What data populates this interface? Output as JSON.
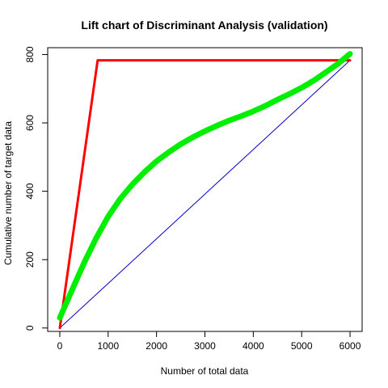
{
  "chart_data": {
    "type": "line",
    "title": "Lift chart of Discriminant Analysis (validation)",
    "xlabel": "Number of total data",
    "ylabel": "Cumulative number of target data",
    "xlim": [
      -250,
      6250
    ],
    "ylim": [
      -10,
      820
    ],
    "xticks": [
      0,
      1000,
      2000,
      3000,
      4000,
      5000,
      6000
    ],
    "yticks": [
      0,
      200,
      400,
      600,
      800
    ],
    "grid": false,
    "legend": "none",
    "series": [
      {
        "color": "#0000cc",
        "width": 1,
        "x": [
          0,
          6000
        ],
        "y": [
          0,
          783
        ]
      },
      {
        "color": "#ff0000",
        "width": 3,
        "x": [
          0,
          783,
          6000
        ],
        "y": [
          0,
          783,
          783
        ]
      },
      {
        "color": "#00ee00",
        "width": 7,
        "x": [
          0,
          250,
          500,
          750,
          1000,
          1250,
          1500,
          1750,
          2000,
          2250,
          2500,
          2750,
          3000,
          3250,
          3500,
          3750,
          4000,
          4250,
          4500,
          4750,
          5000,
          5250,
          5500,
          5750,
          6000
        ],
        "y": [
          30,
          110,
          190,
          262,
          326,
          378,
          420,
          456,
          488,
          514,
          538,
          558,
          576,
          592,
          607,
          620,
          634,
          650,
          668,
          685,
          703,
          724,
          748,
          773,
          802
        ]
      }
    ]
  }
}
